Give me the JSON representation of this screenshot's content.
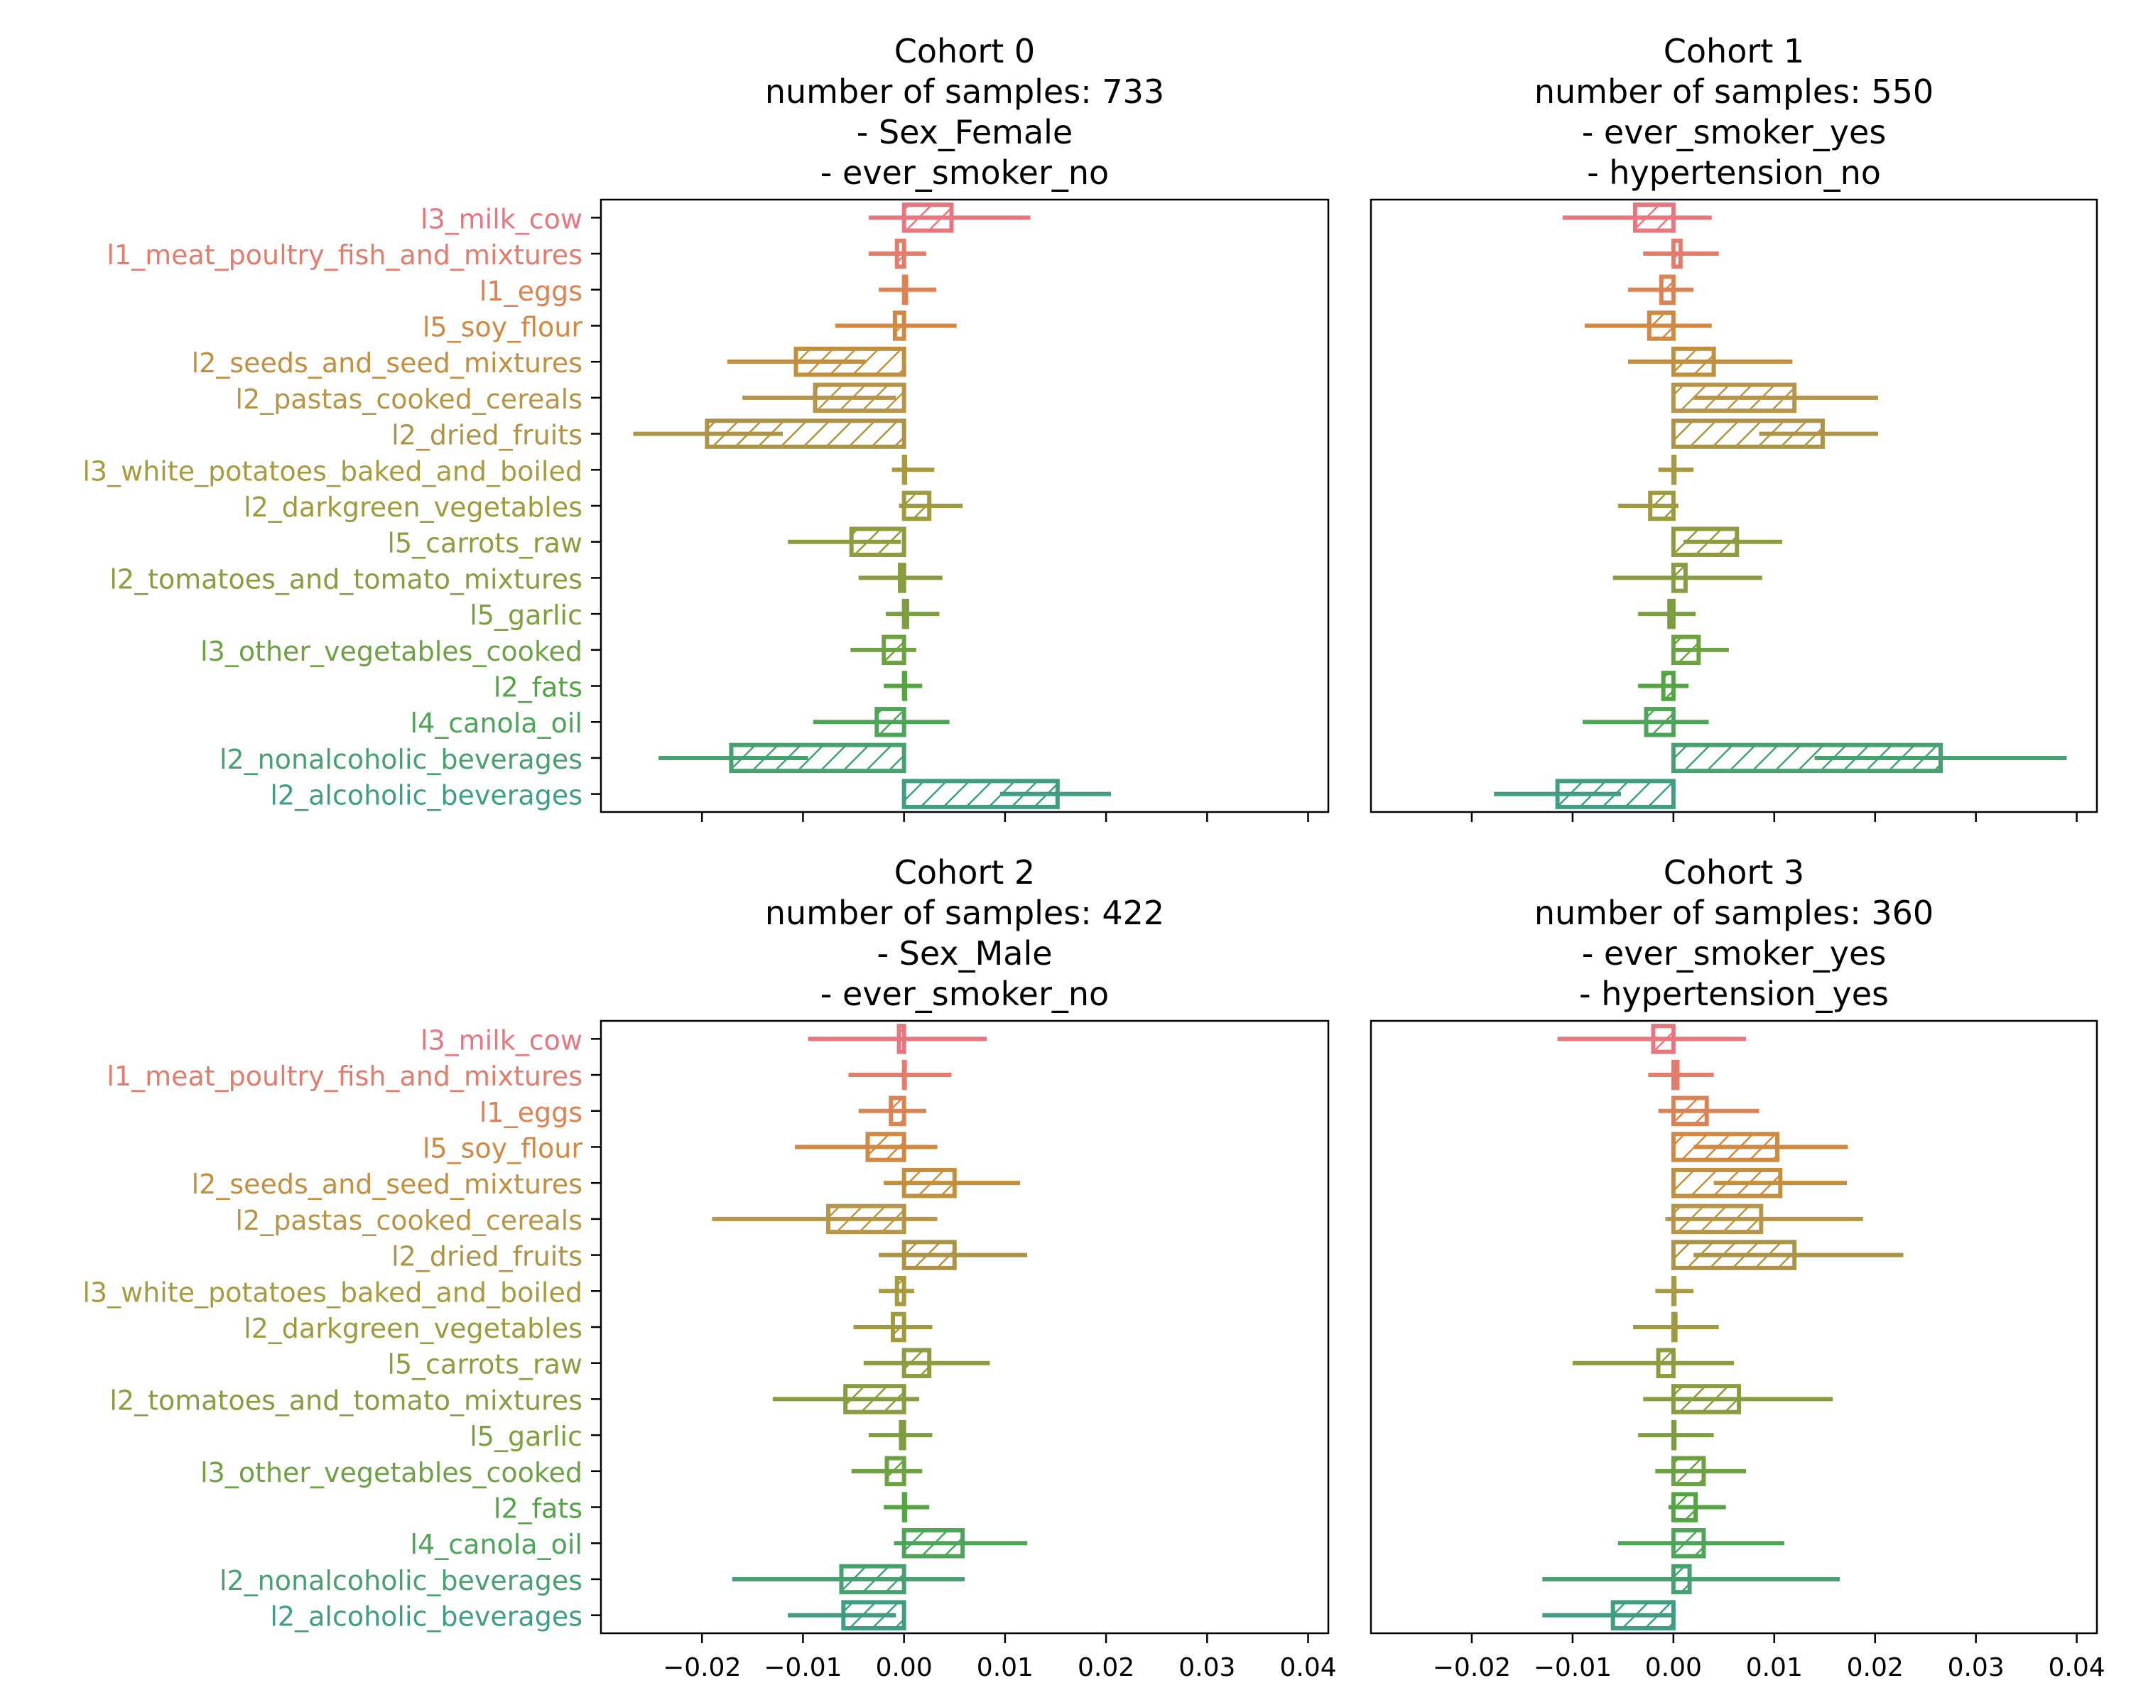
{
  "chart_data": [
    {
      "type": "bar",
      "orientation": "horizontal",
      "title_lines": [
        "Cohort 0",
        "number of samples: 733",
        "- Sex_Female",
        "- ever_smoker_no"
      ],
      "categories": [
        "l3_milk_cow",
        "l1_meat_poultry_fish_and_mixtures",
        "l1_eggs",
        "l5_soy_flour",
        "l2_seeds_and_seed_mixtures",
        "l2_pastas_cooked_cereals",
        "l2_dried_fruits",
        "l3_white_potatoes_baked_and_boiled",
        "l2_darkgreen_vegetables",
        "l5_carrots_raw",
        "l2_tomatoes_and_tomato_mixtures",
        "l5_garlic",
        "l3_other_vegetables_cooked",
        "l2_fats",
        "l4_canola_oil",
        "l2_nonalcoholic_beverages",
        "l2_alcoholic_beverages"
      ],
      "values": [
        0.0047,
        -0.0007,
        0.0002,
        -0.0009,
        -0.0107,
        -0.0088,
        -0.0195,
        0.0001,
        0.0025,
        -0.0052,
        -0.0004,
        0.0003,
        -0.002,
        0.0001,
        -0.0027,
        -0.0171,
        0.0152
      ],
      "error_low": [
        -0.0035,
        -0.0035,
        -0.0025,
        -0.0068,
        -0.0175,
        -0.016,
        -0.0268,
        -0.0012,
        -0.0005,
        -0.0115,
        -0.0045,
        -0.0018,
        -0.0053,
        -0.002,
        -0.009,
        -0.0243,
        0.0095
      ],
      "error_high": [
        0.0125,
        0.0022,
        0.0032,
        0.0052,
        -0.0038,
        -0.0008,
        -0.012,
        0.003,
        0.0058,
        -0.0003,
        0.0038,
        0.0035,
        0.0012,
        0.0018,
        0.0045,
        -0.0095,
        0.0205
      ],
      "xlim": [
        -0.03,
        0.042
      ],
      "show_x_tick_labels": false
    },
    {
      "type": "bar",
      "orientation": "horizontal",
      "title_lines": [
        "Cohort 1",
        "number of samples: 550",
        "- ever_smoker_yes",
        "- hypertension_no"
      ],
      "categories": [
        "l3_milk_cow",
        "l1_meat_poultry_fish_and_mixtures",
        "l1_eggs",
        "l5_soy_flour",
        "l2_seeds_and_seed_mixtures",
        "l2_pastas_cooked_cereals",
        "l2_dried_fruits",
        "l3_white_potatoes_baked_and_boiled",
        "l2_darkgreen_vegetables",
        "l5_carrots_raw",
        "l2_tomatoes_and_tomato_mixtures",
        "l5_garlic",
        "l3_other_vegetables_cooked",
        "l2_fats",
        "l4_canola_oil",
        "l2_nonalcoholic_beverages",
        "l2_alcoholic_beverages"
      ],
      "values": [
        -0.0038,
        0.0007,
        -0.0012,
        -0.0024,
        0.004,
        0.012,
        0.0148,
        0.0001,
        -0.0023,
        0.0063,
        0.0012,
        -0.0004,
        0.0025,
        -0.001,
        -0.0027,
        0.0265,
        -0.0115
      ],
      "error_low": [
        -0.011,
        -0.003,
        -0.0045,
        -0.0088,
        -0.0045,
        0.002,
        0.0085,
        -0.0015,
        -0.0055,
        0.001,
        -0.006,
        -0.0035,
        -0.0002,
        -0.0035,
        -0.009,
        0.014,
        -0.0178
      ],
      "error_high": [
        0.0038,
        0.0045,
        0.002,
        0.0038,
        0.0118,
        0.0203,
        0.0203,
        0.002,
        0.0005,
        0.0108,
        0.0088,
        0.0022,
        0.0055,
        0.0015,
        0.0035,
        0.039,
        -0.0052
      ],
      "xlim": [
        -0.03,
        0.042
      ],
      "show_x_tick_labels": false
    },
    {
      "type": "bar",
      "orientation": "horizontal",
      "title_lines": [
        "Cohort 2",
        "number of samples: 422",
        "- Sex_Male",
        "- ever_smoker_no"
      ],
      "categories": [
        "l3_milk_cow",
        "l1_meat_poultry_fish_and_mixtures",
        "l1_eggs",
        "l5_soy_flour",
        "l2_seeds_and_seed_mixtures",
        "l2_pastas_cooked_cereals",
        "l2_dried_fruits",
        "l3_white_potatoes_baked_and_boiled",
        "l2_darkgreen_vegetables",
        "l5_carrots_raw",
        "l2_tomatoes_and_tomato_mixtures",
        "l5_garlic",
        "l3_other_vegetables_cooked",
        "l2_fats",
        "l4_canola_oil",
        "l2_nonalcoholic_beverages",
        "l2_alcoholic_beverages"
      ],
      "values": [
        -0.0005,
        0.0,
        -0.0013,
        -0.0036,
        0.005,
        -0.0075,
        0.005,
        -0.0007,
        -0.0011,
        0.0025,
        -0.0058,
        -0.0003,
        -0.0017,
        0.0001,
        0.0058,
        -0.0062,
        -0.006
      ],
      "error_low": [
        -0.0095,
        -0.0055,
        -0.0045,
        -0.0108,
        -0.002,
        -0.019,
        -0.0025,
        -0.0025,
        -0.005,
        -0.004,
        -0.013,
        -0.0035,
        -0.0052,
        -0.002,
        -0.001,
        -0.017,
        -0.0115
      ],
      "error_high": [
        0.0082,
        0.0047,
        0.0022,
        0.0033,
        0.0115,
        0.0033,
        0.0122,
        0.001,
        0.0028,
        0.0085,
        0.0015,
        0.0028,
        0.0018,
        0.0025,
        0.0122,
        0.006,
        -0.0008
      ],
      "xlim": [
        -0.03,
        0.042
      ],
      "show_x_tick_labels": true
    },
    {
      "type": "bar",
      "orientation": "horizontal",
      "title_lines": [
        "Cohort 3",
        "number of samples: 360",
        "- ever_smoker_yes",
        "- hypertension_yes"
      ],
      "categories": [
        "l3_milk_cow",
        "l1_meat_poultry_fish_and_mixtures",
        "l1_eggs",
        "l5_soy_flour",
        "l2_seeds_and_seed_mixtures",
        "l2_pastas_cooked_cereals",
        "l2_dried_fruits",
        "l3_white_potatoes_baked_and_boiled",
        "l2_darkgreen_vegetables",
        "l5_carrots_raw",
        "l2_tomatoes_and_tomato_mixtures",
        "l5_garlic",
        "l3_other_vegetables_cooked",
        "l2_fats",
        "l4_canola_oil",
        "l2_nonalcoholic_beverages",
        "l2_alcoholic_beverages"
      ],
      "values": [
        -0.002,
        0.0004,
        0.0033,
        0.0103,
        0.0106,
        0.0087,
        0.012,
        0.0001,
        0.0002,
        -0.0015,
        0.0065,
        0.0001,
        0.003,
        0.0022,
        0.003,
        0.0016,
        -0.006
      ],
      "error_low": [
        -0.0115,
        -0.0025,
        -0.0015,
        0.002,
        0.004,
        -0.0008,
        0.002,
        -0.0018,
        -0.004,
        -0.01,
        -0.003,
        -0.0035,
        -0.0018,
        -0.0005,
        -0.0055,
        -0.013,
        -0.013
      ],
      "error_high": [
        0.0072,
        0.004,
        0.0085,
        0.0173,
        0.0172,
        0.0188,
        0.0228,
        0.002,
        0.0045,
        0.006,
        0.0158,
        0.004,
        0.0072,
        0.0052,
        0.011,
        0.0165,
        0.0
      ],
      "xlim": [
        -0.03,
        0.042
      ],
      "show_x_tick_labels": true
    }
  ],
  "x_ticks": [
    -0.02,
    -0.01,
    0.0,
    0.01,
    0.02,
    0.03,
    0.04
  ],
  "x_tick_labels": [
    "−0.02",
    "−0.01",
    "0.00",
    "0.01",
    "0.02",
    "0.03",
    "0.04"
  ],
  "category_colors": [
    "#e8767f",
    "#e37c6a",
    "#dc8354",
    "#cf8942",
    "#c28f3c",
    "#b79548",
    "#ad9345",
    "#a79a3f",
    "#9e9a3d",
    "#8f9b3e",
    "#889c40",
    "#7d9e3f",
    "#6ca242",
    "#54a444",
    "#4ea458",
    "#47a070",
    "#3f9e82"
  ]
}
